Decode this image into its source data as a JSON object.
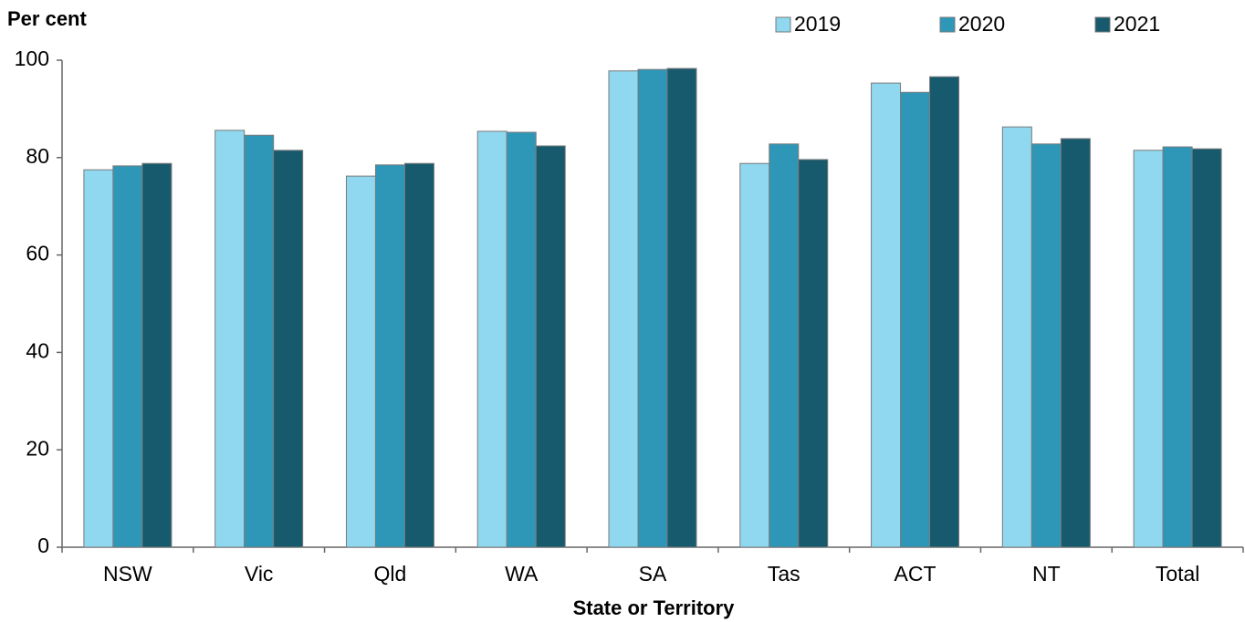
{
  "chart_data": {
    "type": "bar",
    "y_label": "Per cent",
    "x_label": "State or Territory",
    "categories": [
      "NSW",
      "Vic",
      "Qld",
      "WA",
      "SA",
      "Tas",
      "ACT",
      "NT",
      "Total"
    ],
    "series": [
      {
        "name": "2019",
        "color": "#8fd8f0",
        "values": [
          77.5,
          85.6,
          76.2,
          85.4,
          97.8,
          78.8,
          95.3,
          86.3,
          81.5
        ]
      },
      {
        "name": "2020",
        "color": "#2e97b8",
        "values": [
          78.3,
          84.6,
          78.5,
          85.2,
          98.1,
          82.8,
          93.4,
          82.8,
          82.2
        ]
      },
      {
        "name": "2021",
        "color": "#175a6e",
        "values": [
          78.8,
          81.5,
          78.8,
          82.4,
          98.3,
          79.6,
          96.6,
          83.9,
          81.8
        ]
      }
    ],
    "ylim": [
      0,
      100
    ],
    "yticks": [
      0,
      20,
      40,
      60,
      80,
      100
    ],
    "grid": false,
    "legend": "top-right"
  }
}
